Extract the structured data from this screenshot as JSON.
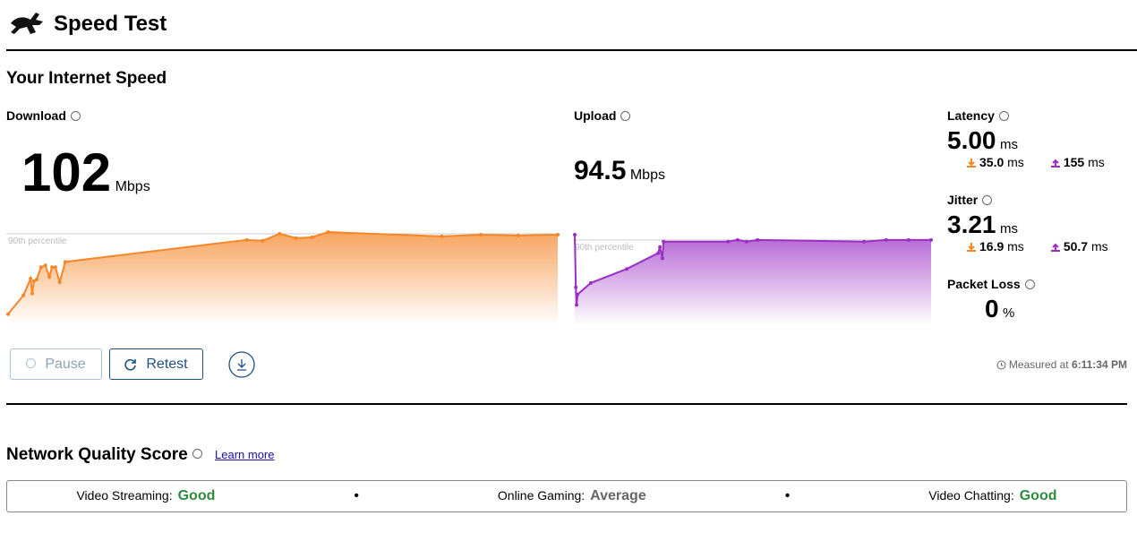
{
  "header": {
    "title": "Speed Test"
  },
  "speed": {
    "title": "Your Internet Speed",
    "download": {
      "label": "Download",
      "value": "102",
      "unit": "Mbps",
      "percentile_label": "90th percentile",
      "percentile_90": 102,
      "x": [
        0,
        2.8,
        4.1,
        4.4,
        4.7,
        5.2,
        6.0,
        6.8,
        7.5,
        8.0,
        8.6,
        9.4,
        10.4,
        43.4,
        46.3,
        49.4,
        52.4,
        55.3,
        58.2,
        78.9,
        86.0,
        92.8,
        100
      ],
      "values": [
        10.6,
        32,
        51,
        34,
        48,
        50,
        64,
        66,
        53,
        64,
        64,
        47,
        70,
        95,
        94,
        102,
        97,
        98,
        104,
        99,
        101,
        100,
        101
      ]
    },
    "upload": {
      "label": "Upload",
      "value": "94.5",
      "unit": "Mbps",
      "percentile_label": "90th percentile",
      "percentile_90": 95,
      "x": [
        0,
        0.3,
        0.5,
        0.8,
        4.5,
        14.6,
        23.4,
        23.9,
        24.6,
        24.9,
        43.0,
        45.7,
        48.2,
        51.3,
        81.2,
        87.4,
        93.7,
        100
      ],
      "values": [
        101,
        41,
        21,
        33,
        46,
        62,
        80,
        87,
        74,
        93,
        93,
        95,
        93,
        95,
        93,
        95,
        95,
        95
      ]
    },
    "latency": {
      "label": "Latency",
      "value": "5.00",
      "unit": "ms",
      "down": "35.0",
      "down_unit": "ms",
      "up": "155",
      "up_unit": "ms"
    },
    "jitter": {
      "label": "Jitter",
      "value": "3.21",
      "unit": "ms",
      "down": "16.9",
      "down_unit": "ms",
      "up": "50.7",
      "up_unit": "ms"
    },
    "packet_loss": {
      "label": "Packet Loss",
      "value": "0",
      "unit": "%"
    },
    "buttons": {
      "pause": "Pause",
      "retest": "Retest"
    },
    "measured": {
      "label": "Measured at",
      "time": "6:11:34 PM"
    }
  },
  "quality": {
    "title": "Network Quality Score",
    "link": "Learn more",
    "items": [
      {
        "label": "Video Streaming:",
        "value": "Good"
      },
      {
        "label": "Online Gaming:",
        "value": "Average"
      },
      {
        "label": "Video Chatting:",
        "value": "Good"
      }
    ]
  }
}
